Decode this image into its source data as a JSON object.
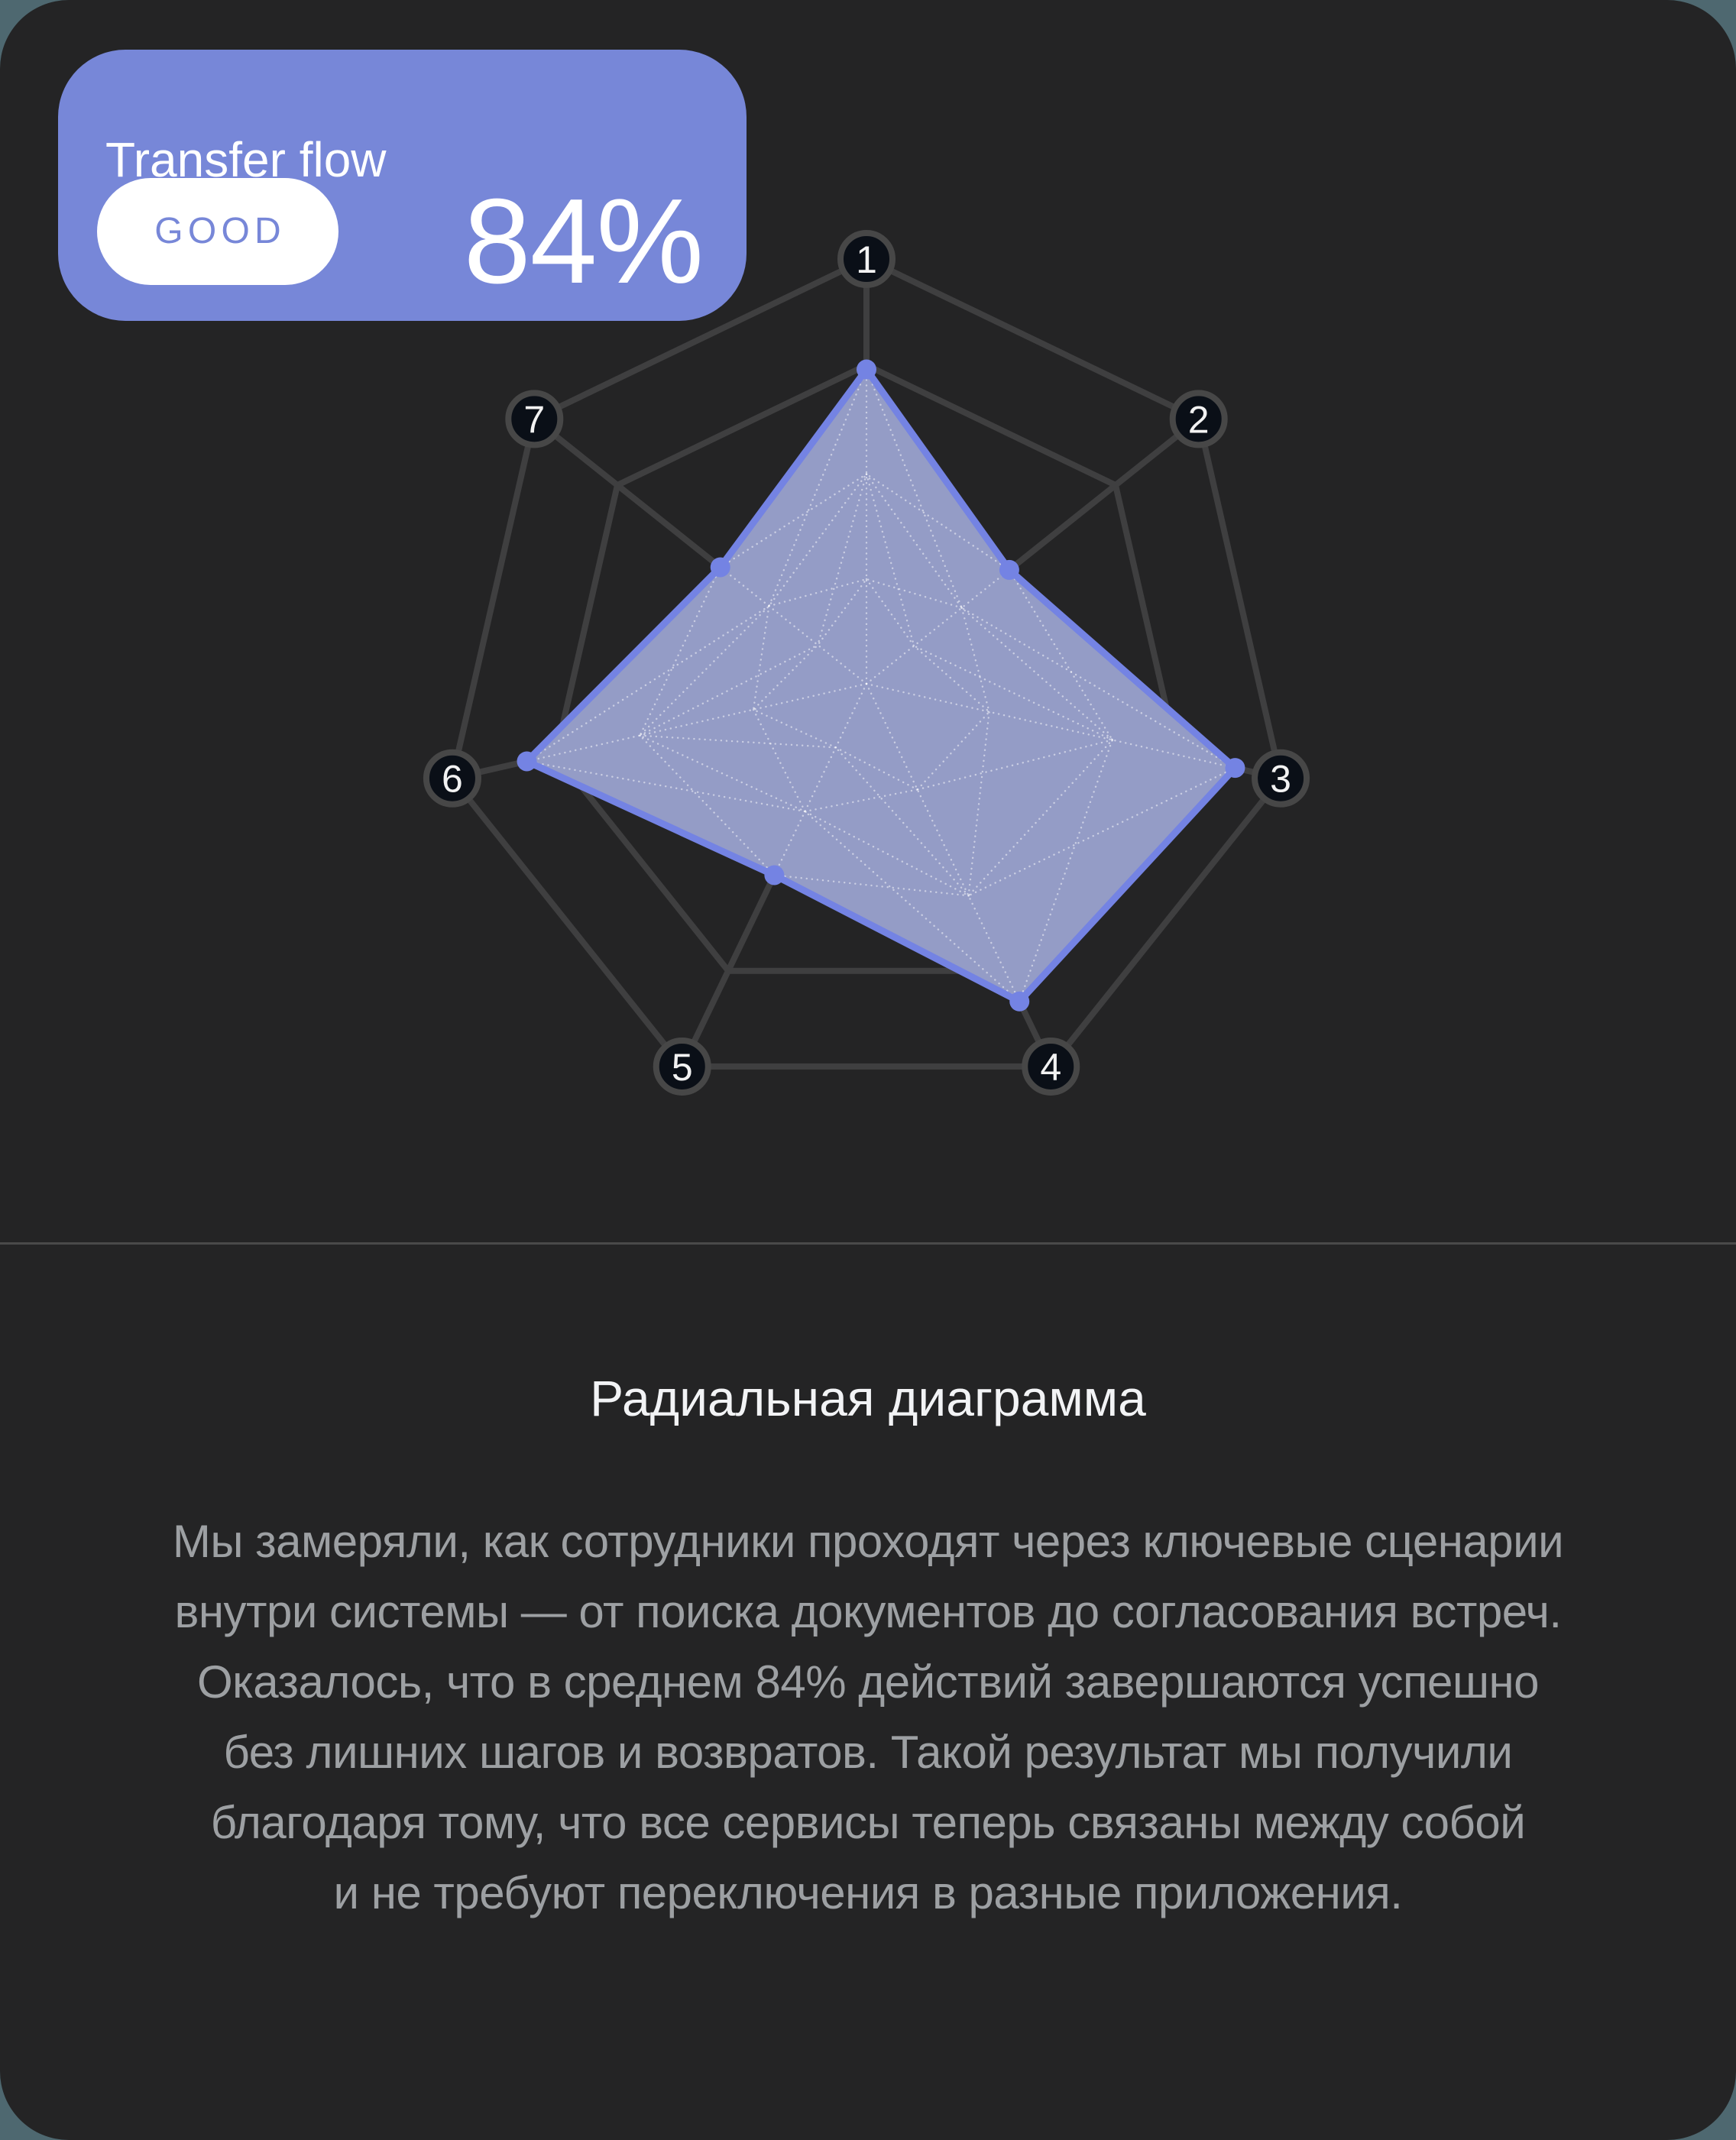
{
  "theme": {
    "page_background": "#4E6870",
    "card_background": "#242425",
    "accent": "#7787D8",
    "chart_fill": "#949CC6",
    "chart_stroke": "#7483E3",
    "web_line": "#3F3F40",
    "axis_chip_bg": "#0A0F17",
    "axis_chip_ring": "#474747",
    "guide_dotted": "#FFFFFF",
    "divider": "#4A4A4A",
    "heading_text": "#F2F3F5",
    "paragraph_text": "#9DA0A3"
  },
  "kpi_card": {
    "title": "Transfer flow",
    "badge": "GOOD",
    "value": "84%"
  },
  "chart_data": {
    "type": "radar",
    "categories": [
      "1",
      "2",
      "3",
      "4",
      "5",
      "6",
      "7"
    ],
    "values": [
      74,
      43,
      89,
      83,
      50,
      82,
      44
    ],
    "max": 100,
    "grid_rings_percent": [
      100,
      75
    ],
    "inner_guide_scales": [
      0.667,
      0.333
    ],
    "axes_count": 7,
    "start_angle_deg": -90,
    "legend": [],
    "title": "Transfer flow",
    "value_label": "84%"
  },
  "details": {
    "heading": "Радиальная диаграмма",
    "paragraph": "Мы замеряли, как сотрудники проходят через ключевые сценарии\nвнутри системы — от поиска документов до согласования встреч.\nОказалось, что в среднем 84% действий завершаются успешно\nбез лишних шагов и возвратов. Такой результат мы получили\nблагодаря тому, что все сервисы теперь связаны между собой\nи не требуют переключения в разные приложения."
  }
}
